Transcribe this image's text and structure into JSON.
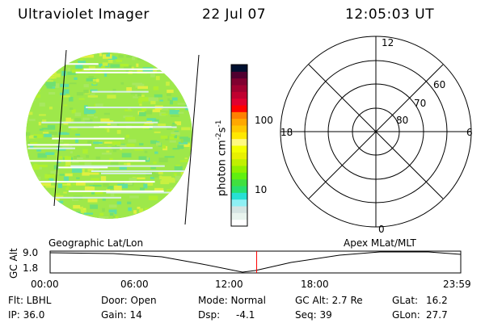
{
  "header": {
    "instrument": "Ultraviolet Imager",
    "date": "22 Jul 07",
    "time": "12:05:03 UT"
  },
  "colorbar": {
    "label": "photon cm",
    "exp1": "-2",
    "unit2": "s",
    "exp2": "-1",
    "ticks": [
      "100",
      "10"
    ],
    "colors": [
      "#ffffff",
      "#e8f4ee",
      "#d4e4e2",
      "#8ef0f4",
      "#28e0d4",
      "#28e070",
      "#40e040",
      "#60f010",
      "#90f000",
      "#c0f000",
      "#e8f000",
      "#f4ff00",
      "#fffa80",
      "#ffe800",
      "#ffc800",
      "#ffa800",
      "#ff8000",
      "#ff0000",
      "#e00030",
      "#c00030",
      "#a00030",
      "#800030",
      "#500030",
      "#001030"
    ]
  },
  "polar": {
    "labels": {
      "top": "12",
      "bottom": "0",
      "left": "18",
      "right": "6"
    },
    "rings": [
      "60",
      "70",
      "80"
    ]
  },
  "altplot": {
    "left_title": "Geographic Lat/Lon",
    "right_title": "Apex MLat/MLT",
    "ylabel": "GC Alt",
    "yticks": [
      "9.0",
      "1.8"
    ],
    "xticks": [
      "00:00",
      "06:00",
      "12:00",
      "18:00",
      "23:59"
    ],
    "current_fraction": 0.503,
    "marker_color": "#ff0000"
  },
  "status": {
    "flt": "Flt: LBHL",
    "ip": "IP: 36.0",
    "door": "Door: Open",
    "gain": "Gain: 14",
    "mode": "Mode: Normal",
    "dsp": "Dsp:",
    "dsp_val": "-4.1",
    "gcalt": "GC Alt: 2.7 Re",
    "seq": "Seq: 39",
    "glat": "GLat:",
    "glat_val": "16.2",
    "glon": "GLon:",
    "glon_val": "27.7"
  }
}
